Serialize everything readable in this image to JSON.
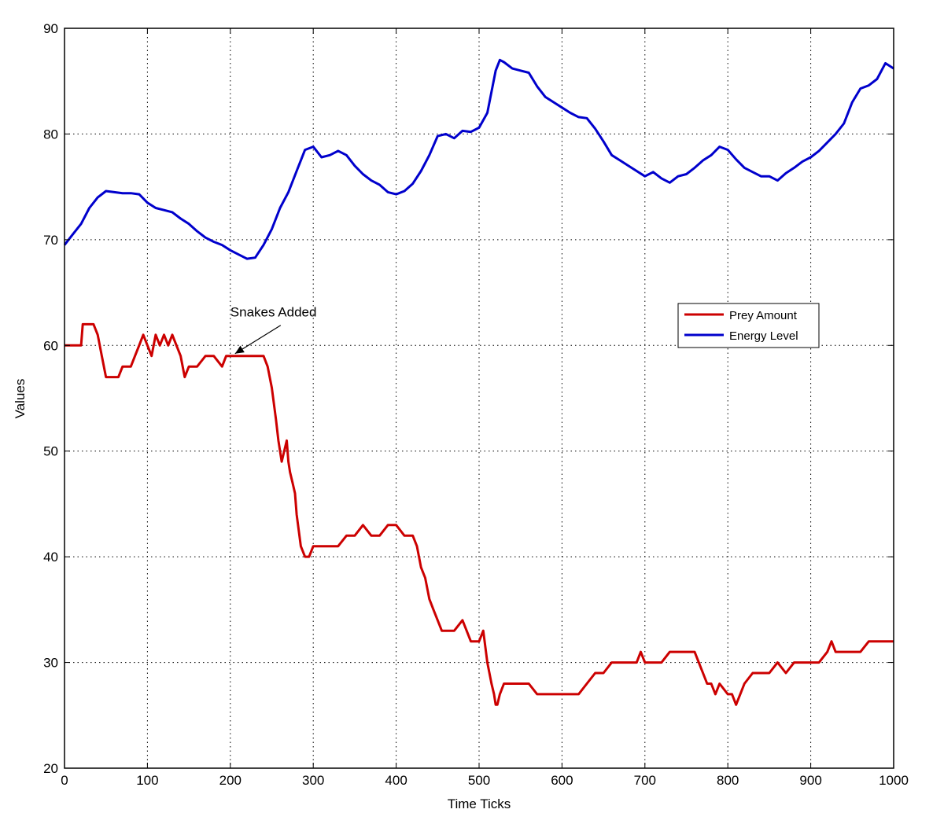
{
  "chart_data": {
    "type": "line",
    "title": "",
    "xlabel": "Time Ticks",
    "ylabel": "Values",
    "xlim": [
      0,
      1000
    ],
    "ylim": [
      20,
      90
    ],
    "xticks": [
      0,
      100,
      200,
      300,
      400,
      500,
      600,
      700,
      800,
      900,
      1000
    ],
    "yticks": [
      20,
      30,
      40,
      50,
      60,
      70,
      80,
      90
    ],
    "grid": true,
    "legend_position": "middle-right",
    "annotation": {
      "text": "Snakes Added",
      "x": 200,
      "y": 59
    },
    "series": [
      {
        "name": "Prey Amount",
        "color": "#cc0000",
        "x": [
          0,
          20,
          22,
          35,
          40,
          45,
          50,
          65,
          70,
          80,
          85,
          90,
          95,
          100,
          105,
          110,
          115,
          120,
          125,
          130,
          135,
          140,
          145,
          150,
          155,
          160,
          170,
          180,
          190,
          195,
          200,
          210,
          220,
          230,
          240,
          245,
          250,
          255,
          258,
          262,
          265,
          268,
          270,
          272,
          275,
          278,
          280,
          285,
          290,
          295,
          300,
          310,
          320,
          330,
          340,
          350,
          360,
          370,
          380,
          390,
          400,
          410,
          420,
          425,
          430,
          435,
          440,
          445,
          450,
          455,
          460,
          470,
          480,
          485,
          490,
          495,
          500,
          505,
          510,
          515,
          518,
          520,
          522,
          525,
          530,
          535,
          540,
          550,
          560,
          570,
          580,
          590,
          600,
          610,
          620,
          630,
          640,
          650,
          660,
          670,
          680,
          690,
          695,
          700,
          705,
          710,
          720,
          730,
          740,
          750,
          760,
          765,
          770,
          775,
          780,
          785,
          790,
          800,
          805,
          810,
          815,
          820,
          830,
          840,
          850,
          860,
          870,
          880,
          890,
          900,
          910,
          920,
          925,
          930,
          935,
          940,
          950,
          960,
          970,
          980,
          990,
          1000
        ],
        "values": [
          60,
          60,
          62,
          62,
          61,
          59,
          57,
          57,
          58,
          58,
          59,
          60,
          61,
          60,
          59,
          61,
          60,
          61,
          60,
          61,
          60,
          59,
          57,
          58,
          58,
          58,
          59,
          59,
          58,
          59,
          59,
          59,
          59,
          59,
          59,
          58,
          56,
          53,
          51,
          49,
          50,
          51,
          49,
          48,
          47,
          46,
          44,
          41,
          40,
          40,
          41,
          41,
          41,
          41,
          42,
          42,
          43,
          42,
          42,
          43,
          43,
          42,
          42,
          41,
          39,
          38,
          36,
          35,
          34,
          33,
          33,
          33,
          34,
          33,
          32,
          32,
          32,
          33,
          30,
          28,
          27,
          26,
          26,
          27,
          28,
          28,
          28,
          28,
          28,
          27,
          27,
          27,
          27,
          27,
          27,
          28,
          29,
          29,
          30,
          30,
          30,
          30,
          31,
          30,
          30,
          30,
          30,
          31,
          31,
          31,
          31,
          30,
          29,
          28,
          28,
          27,
          28,
          27,
          27,
          26,
          27,
          28,
          29,
          29,
          29,
          30,
          29,
          30,
          30,
          30,
          30,
          31,
          32,
          31,
          31,
          31,
          31,
          31,
          32,
          32,
          32,
          32
        ]
      },
      {
        "name": "Energy Level",
        "color": "#0000cc",
        "x": [
          0,
          10,
          20,
          30,
          40,
          50,
          60,
          70,
          80,
          90,
          100,
          110,
          120,
          130,
          140,
          150,
          160,
          170,
          180,
          190,
          200,
          210,
          220,
          230,
          240,
          250,
          260,
          270,
          280,
          290,
          300,
          310,
          320,
          330,
          340,
          350,
          360,
          370,
          380,
          390,
          400,
          410,
          420,
          430,
          440,
          450,
          460,
          470,
          480,
          490,
          500,
          510,
          515,
          520,
          525,
          530,
          540,
          550,
          560,
          570,
          580,
          590,
          600,
          610,
          620,
          630,
          640,
          650,
          660,
          670,
          680,
          690,
          700,
          710,
          720,
          730,
          740,
          750,
          760,
          770,
          780,
          790,
          800,
          810,
          820,
          830,
          840,
          850,
          860,
          870,
          880,
          890,
          900,
          910,
          920,
          930,
          940,
          950,
          960,
          970,
          980,
          990,
          1000
        ],
        "values": [
          69.5,
          70.5,
          71.5,
          73,
          74,
          74.6,
          74.5,
          74.4,
          74.4,
          74.3,
          73.5,
          73,
          72.8,
          72.6,
          72,
          71.5,
          70.8,
          70.2,
          69.8,
          69.5,
          69,
          68.6,
          68.2,
          68.3,
          69.5,
          71,
          73,
          74.5,
          76.5,
          78.5,
          78.8,
          77.8,
          78,
          78.4,
          78,
          77,
          76.2,
          75.6,
          75.2,
          74.5,
          74.3,
          74.6,
          75.3,
          76.5,
          78,
          79.8,
          80,
          79.6,
          80.3,
          80.2,
          80.6,
          82,
          84,
          86,
          87,
          86.8,
          86.2,
          86,
          85.8,
          84.5,
          83.5,
          83,
          82.5,
          82,
          81.6,
          81.5,
          80.5,
          79.3,
          78,
          77.5,
          77,
          76.5,
          76,
          76.4,
          75.8,
          75.4,
          76,
          76.2,
          76.8,
          77.5,
          78,
          78.8,
          78.5,
          77.6,
          76.8,
          76.4,
          76,
          76,
          75.6,
          76.3,
          76.8,
          77.4,
          77.8,
          78.4,
          79.2,
          80,
          81,
          83,
          84.3,
          84.6,
          85.2,
          86.7,
          86.2
        ]
      }
    ]
  }
}
